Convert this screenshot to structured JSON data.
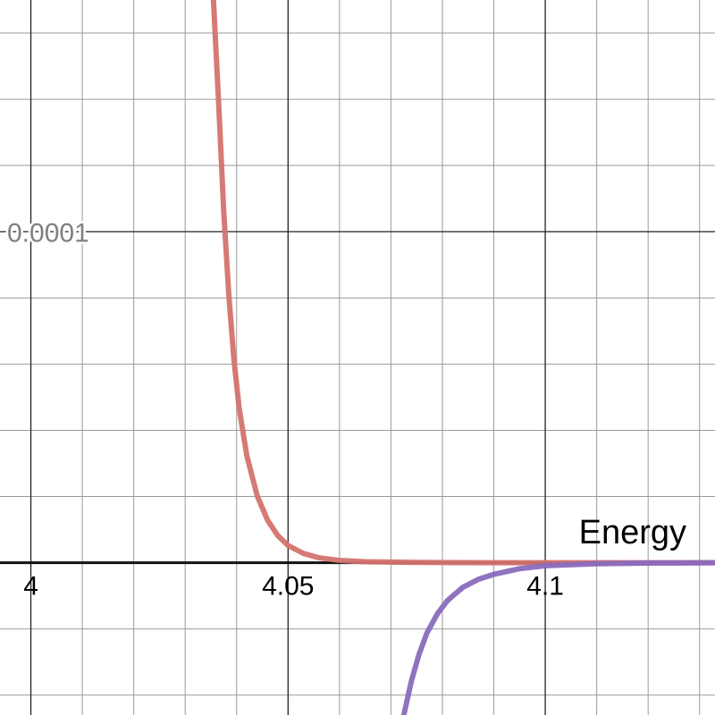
{
  "chart_data": {
    "type": "line",
    "title": "",
    "xlabel": "Energy",
    "ylabel": "",
    "xlim": [
      3.994,
      4.133
    ],
    "ylim": [
      -4.6e-05,
      0.00017
    ],
    "grid": true,
    "x_ticks": [
      {
        "value": 4,
        "label": "4"
      },
      {
        "value": 4.05,
        "label": "4.05"
      },
      {
        "value": 4.1,
        "label": "4.1"
      }
    ],
    "y_ticks": [
      {
        "value": 0.0001,
        "label": "0.0001"
      }
    ],
    "series": [
      {
        "color": "#d4736e",
        "points": [
          [
            4.0355,
            0.00017
          ],
          [
            4.0365,
            0.000139
          ],
          [
            4.0375,
            0.000106
          ],
          [
            4.0385,
            8.05e-05
          ],
          [
            4.0395,
            6.1e-05
          ],
          [
            4.0405,
            4.66e-05
          ],
          [
            4.042,
            3.22e-05
          ],
          [
            4.044,
            2.02e-05
          ],
          [
            4.046,
            1.29e-05
          ],
          [
            4.048,
            8.2e-06
          ],
          [
            4.05,
            5.2e-06
          ],
          [
            4.053,
            2.8e-06
          ],
          [
            4.056,
            1.5e-06
          ],
          [
            4.06,
            7e-07
          ],
          [
            4.065,
            3e-07
          ],
          [
            4.075,
            1e-07
          ],
          [
            4.09,
            0.0
          ],
          [
            4.133,
            0.0
          ]
        ]
      },
      {
        "color": "#8a6bbd",
        "points": [
          [
            4.0725,
            -4.6e-05
          ],
          [
            4.074,
            -3.56e-05
          ],
          [
            4.0755,
            -2.75e-05
          ],
          [
            4.077,
            -2.12e-05
          ],
          [
            4.079,
            -1.55e-05
          ],
          [
            4.081,
            -1.14e-05
          ],
          [
            4.084,
            -7.4e-06
          ],
          [
            4.087,
            -5e-06
          ],
          [
            4.09,
            -3.5e-06
          ],
          [
            4.095,
            -1.8e-06
          ],
          [
            4.1,
            -9e-07
          ],
          [
            4.11,
            -3e-07
          ],
          [
            4.12,
            -1e-07
          ],
          [
            4.133,
            0.0
          ]
        ]
      }
    ],
    "colors": {
      "grid_major": "#222222",
      "grid_minor": "#9a9a9a",
      "axis": "#111111",
      "x_tick_label": "#000000",
      "y_tick_label": "#808080"
    }
  }
}
